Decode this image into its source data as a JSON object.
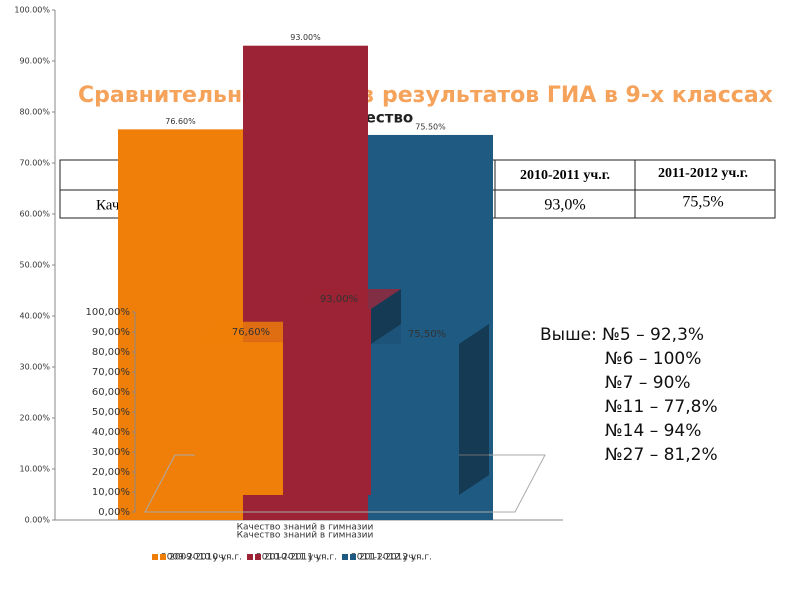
{
  "title": "Сравнительный анализ результатов ГИА в 9-х классах",
  "subtitle": "Качество",
  "table": {
    "header": [
      "2010-2011 уч.г.",
      "2011-2012 уч.г."
    ],
    "row_label": "Качество знаний",
    "cells": [
      "93,0%",
      "75,5%"
    ]
  },
  "notes": [
    "Выше: №5 – 92,3%",
    "№6 – 100%",
    "№7 – 90%",
    "№11 – 77,8%",
    "№14 – 94%",
    "№27 – 81,2%"
  ],
  "chart_data": [
    {
      "type": "bar",
      "categories": [
        "Качество знаний в гимназии"
      ],
      "series": [
        {
          "name": "2009-2010 уч.г.",
          "color": "#f07f09",
          "values": [
            76.6
          ],
          "value_labels": [
            "76.60%"
          ]
        },
        {
          "name": "2010-2011 уч.г.",
          "color": "#9b2335",
          "values": [
            93
          ],
          "value_labels": [
            "93.00%"
          ]
        },
        {
          "name": "2011-2012 уч.г.",
          "color": "#1f5a82",
          "values": [
            75.5
          ],
          "value_labels": [
            "75.50%"
          ]
        }
      ],
      "ylim": [
        0,
        100
      ],
      "yticks": [
        {
          "value": 0,
          "label": "0.00%"
        },
        {
          "value": 10,
          "label": "10.00%"
        },
        {
          "value": 20,
          "label": "20.00%"
        },
        {
          "value": 30,
          "label": "30.00%"
        },
        {
          "value": 40,
          "label": "40.00%"
        },
        {
          "value": 50,
          "label": "50.00%"
        },
        {
          "value": 60,
          "label": "60.00%"
        },
        {
          "value": 70,
          "label": "70.00%"
        },
        {
          "value": 80,
          "label": "80.00%"
        },
        {
          "value": 90,
          "label": "90.00%"
        },
        {
          "value": 100,
          "label": "100.00%"
        }
      ],
      "grid": false
    },
    {
      "type": "bar3d",
      "categories": [
        "Качество знаний в гимназии"
      ],
      "series": [
        {
          "name": "2009-2010 уч.г.",
          "color": "#f07f09",
          "values": [
            76.6
          ],
          "value_labels": [
            "76,60%"
          ]
        },
        {
          "name": "2010-2011 уч.г.",
          "color": "#9b2335",
          "values": [
            93
          ],
          "value_labels": [
            "93,00%"
          ]
        },
        {
          "name": "2011-2012 уч.г.",
          "color": "#1f5a82",
          "values": [
            75.5
          ],
          "value_labels": [
            "75,50%"
          ]
        }
      ],
      "ylim": [
        0,
        100
      ],
      "yticks": [
        {
          "value": 0,
          "label": "0,00%"
        },
        {
          "value": 10,
          "label": "10,00%"
        },
        {
          "value": 20,
          "label": "20,00%"
        },
        {
          "value": 30,
          "label": "30,00%"
        },
        {
          "value": 40,
          "label": "40,00%"
        },
        {
          "value": 50,
          "label": "50,00%"
        },
        {
          "value": 60,
          "label": "60,00%"
        },
        {
          "value": 70,
          "label": "70,00%"
        },
        {
          "value": 80,
          "label": "80,00%"
        },
        {
          "value": 90,
          "label": "90,00%"
        },
        {
          "value": 100,
          "label": "100,00%"
        }
      ],
      "grid": false
    }
  ]
}
